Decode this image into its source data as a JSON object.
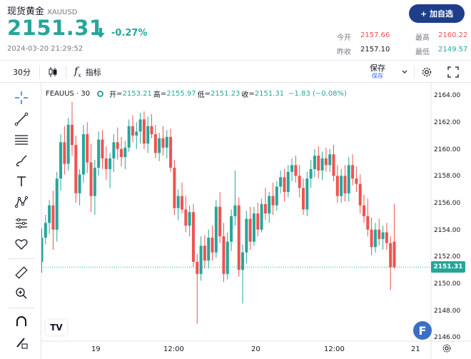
{
  "header": {
    "title": "现货黄金",
    "symbol": "XAUUSD",
    "price": "2151.31",
    "change": "-0.27%",
    "timestamp": "2024-03-20 21:29:52",
    "add_watchlist_label": "+ 加自选",
    "stats": {
      "open_label": "今开",
      "open_value": "2157.66",
      "high_label": "最高",
      "high_value": "2160.22",
      "prev_close_label": "昨收",
      "prev_close_value": "2157.10",
      "low_label": "最低",
      "low_value": "2149.57"
    },
    "colors": {
      "up": "#26a69a",
      "down": "#ef5350",
      "brand": "#1e3e8a"
    }
  },
  "toolbar": {
    "interval": "30分",
    "candle_icon": "candlestick-icon",
    "indicators_label": "指标",
    "save_label": "保存",
    "save_sub_label": "保存"
  },
  "left_tools": [
    "crosshair-icon",
    "trend-line-icon",
    "fib-icon",
    "brush-icon",
    "text-icon",
    "pattern-icon",
    "forecast-icon",
    "heart-icon",
    "ruler-icon",
    "zoom-in-icon",
    "magnet-icon",
    "pencil-lock-icon"
  ],
  "chart_legend": {
    "name": "FEAUUS · 30",
    "open_label": "开",
    "open": "2153.21",
    "high_label": "高",
    "high": "2155.97",
    "low_label": "低",
    "low": "2151.23",
    "close_label": "收",
    "close": "2151.31",
    "change": "−1.83 (−0.08%)"
  },
  "last_price_label": "2151.31",
  "tv_logo": "TV",
  "f_badge": "F",
  "chart_data": {
    "type": "candlestick",
    "yticks": [
      "2164.00",
      "2162.00",
      "2160.00",
      "2158.00",
      "2156.00",
      "2154.00",
      "2152.00",
      "2150.00",
      "2148.00",
      "2146.00"
    ],
    "xticks": [
      "19",
      "12:00",
      "20",
      "12:00",
      "21"
    ],
    "ylim": [
      2145.8,
      2164.6
    ],
    "last_price": 2151.31,
    "candles": [
      [
        2151.7,
        2154.2,
        2150.9,
        2153.5
      ],
      [
        2153.5,
        2155.2,
        2153.0,
        2154.6
      ],
      [
        2154.6,
        2156.3,
        2153.8,
        2155.9
      ],
      [
        2155.9,
        2157.0,
        2152.6,
        2154.1
      ],
      [
        2154.1,
        2158.4,
        2153.2,
        2157.9
      ],
      [
        2157.9,
        2161.2,
        2157.0,
        2160.6
      ],
      [
        2160.6,
        2161.8,
        2158.2,
        2159.0
      ],
      [
        2159.0,
        2162.4,
        2158.5,
        2161.9
      ],
      [
        2161.9,
        2163.6,
        2159.6,
        2160.4
      ],
      [
        2160.4,
        2161.1,
        2156.1,
        2156.8
      ],
      [
        2156.8,
        2158.6,
        2155.9,
        2158.2
      ],
      [
        2158.2,
        2161.9,
        2157.6,
        2161.2
      ],
      [
        2161.2,
        2162.1,
        2158.3,
        2159.1
      ],
      [
        2159.1,
        2160.5,
        2155.4,
        2156.6
      ],
      [
        2156.6,
        2159.3,
        2155.2,
        2158.7
      ],
      [
        2158.7,
        2161.4,
        2158.1,
        2160.8
      ],
      [
        2160.8,
        2161.5,
        2158.6,
        2159.4
      ],
      [
        2159.4,
        2160.3,
        2157.8,
        2158.6
      ],
      [
        2158.6,
        2159.8,
        2157.2,
        2159.4
      ],
      [
        2159.4,
        2161.2,
        2158.4,
        2160.6
      ],
      [
        2160.6,
        2161.7,
        2159.3,
        2160.1
      ],
      [
        2160.1,
        2161.0,
        2158.8,
        2159.5
      ],
      [
        2159.5,
        2160.7,
        2158.6,
        2160.2
      ],
      [
        2160.2,
        2162.3,
        2159.9,
        2161.8
      ],
      [
        2161.8,
        2162.6,
        2160.6,
        2161.1
      ],
      [
        2161.1,
        2162.1,
        2160.1,
        2161.4
      ],
      [
        2161.4,
        2162.8,
        2160.5,
        2162.3
      ],
      [
        2162.3,
        2162.9,
        2160.1,
        2160.5
      ],
      [
        2160.5,
        2162.5,
        2159.8,
        2161.8
      ],
      [
        2161.8,
        2162.7,
        2160.9,
        2161.2
      ],
      [
        2161.2,
        2161.9,
        2159.4,
        2159.8
      ],
      [
        2159.8,
        2161.3,
        2159.2,
        2160.9
      ],
      [
        2160.9,
        2161.8,
        2159.6,
        2160.2
      ],
      [
        2160.2,
        2161.5,
        2159.4,
        2161.0
      ],
      [
        2161.0,
        2161.6,
        2158.4,
        2158.7
      ],
      [
        2158.7,
        2159.3,
        2155.2,
        2155.7
      ],
      [
        2155.7,
        2157.1,
        2154.8,
        2156.6
      ],
      [
        2156.6,
        2157.6,
        2155.3,
        2155.6
      ],
      [
        2155.6,
        2156.6,
        2153.9,
        2154.4
      ],
      [
        2154.4,
        2155.9,
        2153.6,
        2155.4
      ],
      [
        2155.4,
        2156.0,
        2151.3,
        2151.7
      ],
      [
        2151.7,
        2152.3,
        2147.1,
        2150.8
      ],
      [
        2150.8,
        2153.6,
        2150.3,
        2152.9
      ],
      [
        2152.9,
        2153.7,
        2151.2,
        2151.8
      ],
      [
        2151.8,
        2154.1,
        2151.2,
        2153.5
      ],
      [
        2153.5,
        2154.4,
        2151.8,
        2152.4
      ],
      [
        2152.4,
        2156.3,
        2152.0,
        2155.8
      ],
      [
        2155.8,
        2156.9,
        2153.1,
        2153.6
      ],
      [
        2153.6,
        2154.6,
        2150.2,
        2150.8
      ],
      [
        2150.8,
        2153.9,
        2150.4,
        2153.2
      ],
      [
        2153.2,
        2155.6,
        2152.5,
        2155.1
      ],
      [
        2155.1,
        2158.5,
        2154.4,
        2155.9
      ],
      [
        2155.9,
        2156.5,
        2150.6,
        2151.1
      ],
      [
        2151.1,
        2153.0,
        2148.6,
        2152.4
      ],
      [
        2152.4,
        2155.5,
        2151.6,
        2154.9
      ],
      [
        2154.9,
        2155.8,
        2152.6,
        2153.2
      ],
      [
        2153.2,
        2155.8,
        2152.9,
        2155.3
      ],
      [
        2155.3,
        2156.1,
        2153.6,
        2154.1
      ],
      [
        2154.1,
        2156.4,
        2153.9,
        2156.0
      ],
      [
        2156.0,
        2157.2,
        2154.8,
        2155.3
      ],
      [
        2155.3,
        2156.9,
        2154.6,
        2156.6
      ],
      [
        2156.6,
        2157.6,
        2155.2,
        2155.9
      ],
      [
        2155.9,
        2157.7,
        2155.5,
        2157.3
      ],
      [
        2157.3,
        2158.5,
        2156.8,
        2158.0
      ],
      [
        2158.0,
        2158.6,
        2156.2,
        2156.9
      ],
      [
        2156.9,
        2158.9,
        2156.5,
        2158.4
      ],
      [
        2158.4,
        2159.4,
        2157.7,
        2158.9
      ],
      [
        2158.9,
        2159.6,
        2157.6,
        2158.1
      ],
      [
        2158.1,
        2158.9,
        2156.5,
        2157.2
      ],
      [
        2157.2,
        2157.9,
        2155.2,
        2155.6
      ],
      [
        2155.6,
        2158.4,
        2155.1,
        2157.9
      ],
      [
        2157.9,
        2159.3,
        2157.2,
        2158.6
      ],
      [
        2158.6,
        2160.1,
        2158.0,
        2159.6
      ],
      [
        2159.6,
        2160.3,
        2157.9,
        2158.5
      ],
      [
        2158.5,
        2159.9,
        2157.8,
        2159.4
      ],
      [
        2159.4,
        2160.2,
        2158.4,
        2158.9
      ],
      [
        2158.9,
        2160.1,
        2158.4,
        2159.7
      ],
      [
        2159.7,
        2160.4,
        2157.7,
        2158.1
      ],
      [
        2158.1,
        2158.9,
        2156.1,
        2156.6
      ],
      [
        2156.6,
        2158.6,
        2156.1,
        2158.1
      ],
      [
        2158.1,
        2158.9,
        2156.2,
        2156.8
      ],
      [
        2156.8,
        2159.5,
        2156.2,
        2158.9
      ],
      [
        2158.9,
        2159.7,
        2157.4,
        2157.9
      ],
      [
        2157.9,
        2158.8,
        2156.9,
        2157.5
      ],
      [
        2157.5,
        2158.2,
        2155.3,
        2155.9
      ],
      [
        2155.9,
        2156.7,
        2154.6,
        2155.1
      ],
      [
        2155.1,
        2156.4,
        2153.6,
        2154.1
      ],
      [
        2154.1,
        2155.0,
        2152.2,
        2152.8
      ],
      [
        2152.8,
        2154.6,
        2152.4,
        2154.1
      ],
      [
        2154.1,
        2154.9,
        2152.9,
        2153.4
      ],
      [
        2153.4,
        2154.4,
        2152.6,
        2153.9
      ],
      [
        2153.9,
        2154.6,
        2152.6,
        2153.1
      ],
      [
        2153.1,
        2153.6,
        2149.6,
        2151.3
      ],
      [
        2153.2,
        2156.0,
        2151.2,
        2151.3
      ]
    ]
  }
}
